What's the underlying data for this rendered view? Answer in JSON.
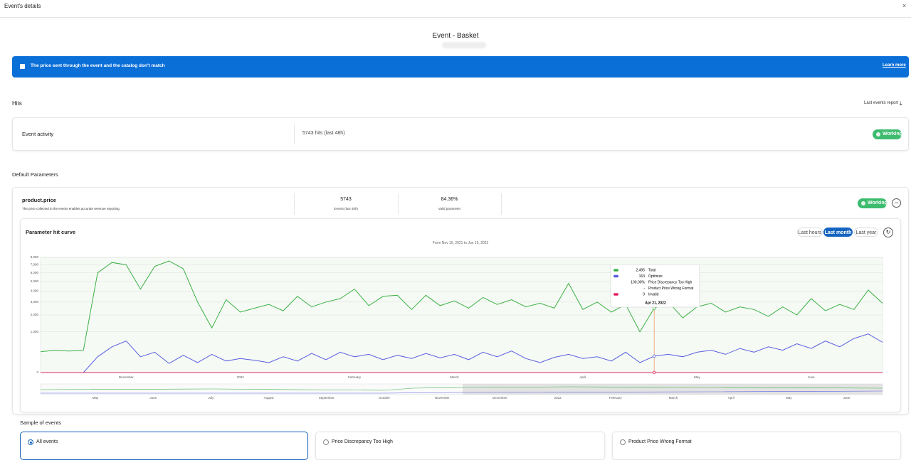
{
  "header": {
    "title": "Event's details",
    "close": "×"
  },
  "event": {
    "title": "Event - Basket"
  },
  "alert": {
    "message": "The price sent through the event and the catalog don't match",
    "link": "Learn more"
  },
  "hits": {
    "title": "Hits",
    "report_link": "Last events report",
    "activity_label": "Event activity",
    "activity_value": "5743 hits (last 48h)",
    "status": "Working"
  },
  "parameters": {
    "title": "Default Parameters",
    "name": "product.price",
    "description": "The price collected in the events enables accurate revenue reporting.",
    "events_value": "5743",
    "events_label": "Events (last 48h)",
    "valid_value": "84.36%",
    "valid_label": "Valid parameter",
    "status": "Working"
  },
  "curve": {
    "title": "Parameter hit curve",
    "ranges": [
      "Last hours",
      "Last month",
      "Last year"
    ],
    "active_range": 1,
    "period": "From Nov 10, 2021 to Jun 19, 2022",
    "navigator_labels": [
      "May",
      "June",
      "July",
      "August",
      "September",
      "October",
      "November",
      "December",
      "2022",
      "February",
      "March",
      "April",
      "May",
      "June"
    ]
  },
  "chart_data": {
    "type": "line",
    "scale": "sqrt",
    "grid": true,
    "categories": [
      null,
      null,
      null,
      null,
      null,
      null,
      "December",
      null,
      null,
      null,
      null,
      null,
      null,
      null,
      "2022",
      null,
      null,
      null,
      null,
      null,
      null,
      null,
      "February",
      null,
      null,
      null,
      null,
      null,
      null,
      "March",
      null,
      null,
      null,
      null,
      null,
      null,
      null,
      null,
      "April",
      null,
      null,
      null,
      null,
      null,
      null,
      null,
      "May",
      null,
      null,
      null,
      null,
      null,
      null,
      null,
      "June",
      null,
      null,
      null,
      null,
      null
    ],
    "ylim": [
      0,
      8000
    ],
    "yticks": [
      0,
      {
        "value": 1000,
        "label": "1,000"
      },
      {
        "value": 2000,
        "label": "2,000"
      },
      {
        "value": 3000,
        "label": "3,000"
      },
      {
        "value": 4000,
        "label": "4,000"
      },
      {
        "value": 5000,
        "label": "5,000"
      },
      {
        "value": 6000,
        "label": "6,000"
      },
      {
        "value": 7000,
        "label": "7,000"
      },
      {
        "value": 8000,
        "label": "8,000"
      }
    ],
    "series": [
      {
        "name": "Total",
        "color": "#3cb043",
        "tooltip_value": "2,495",
        "values": [
          260,
          300,
          280,
          300,
          6000,
          7300,
          7000,
          4200,
          6800,
          7500,
          6500,
          3000,
          1200,
          3200,
          2200,
          2500,
          2800,
          2300,
          3500,
          2600,
          3000,
          3300,
          4200,
          2700,
          3500,
          3600,
          2400,
          3600,
          2700,
          3100,
          2500,
          3400,
          2800,
          3200,
          2600,
          2900,
          2500,
          4800,
          2400,
          3000,
          2200,
          2800,
          1000,
          2495,
          3000,
          1800,
          2600,
          2900,
          2200,
          2600,
          2400,
          1900,
          2600,
          2000,
          3300,
          2300,
          2800,
          2400,
          4100,
          2900
        ]
      },
      {
        "name": "Optimize",
        "color": "#5a5ee0",
        "tooltip_value": "163",
        "values": [
          0,
          0,
          0,
          0,
          150,
          400,
          600,
          150,
          250,
          50,
          180,
          60,
          200,
          80,
          120,
          90,
          60,
          150,
          80,
          220,
          100,
          250,
          150,
          200,
          100,
          180,
          120,
          220,
          130,
          200,
          100,
          250,
          150,
          280,
          120,
          60,
          140,
          200,
          120,
          150,
          80,
          250,
          60,
          163,
          200,
          150,
          250,
          300,
          200,
          350,
          250,
          400,
          300,
          500,
          350,
          600,
          400,
          700,
          900,
          550
        ]
      },
      {
        "name": "Invalid",
        "color": "#e0245e",
        "tooltip_value": "0",
        "values": [
          0,
          0,
          0,
          0,
          0,
          0,
          0,
          0,
          0,
          0,
          0,
          0,
          0,
          0,
          0,
          0,
          0,
          0,
          0,
          0,
          0,
          0,
          0,
          0,
          0,
          0,
          0,
          0,
          0,
          0,
          0,
          0,
          0,
          0,
          0,
          0,
          0,
          0,
          0,
          0,
          0,
          0,
          0,
          0,
          0,
          0,
          0,
          0,
          0,
          0,
          0,
          0,
          0,
          0,
          0,
          0,
          0,
          0,
          0,
          0
        ]
      }
    ],
    "tooltip": {
      "index": 43,
      "date": "Apr 21, 2022",
      "extra": [
        {
          "value": "100.00%",
          "label": "Price Discrepancy Too High"
        },
        {
          "value": "-",
          "label": "Product Price Wrong Format"
        }
      ]
    }
  },
  "samples": {
    "title": "Sample of events",
    "options": [
      "All events",
      "Price Discrepancy Too High",
      "Product Price Wrong Format"
    ],
    "selected": 0
  }
}
